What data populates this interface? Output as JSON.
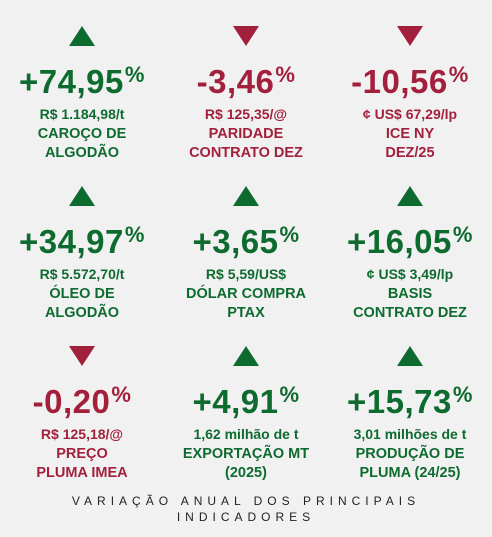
{
  "colors": {
    "positive": "#0e6b2f",
    "negative": "#a3203c",
    "background": "#f1f1f1"
  },
  "indicators": [
    {
      "direction": "up",
      "arrow_icon": "triangle-up-icon",
      "pct": "+74,95",
      "pct_symbol": "%",
      "value": "R$ 1.184,98/t",
      "label_line1": "CAROÇO DE",
      "label_line2": "ALGODÃO"
    },
    {
      "direction": "down",
      "arrow_icon": "triangle-down-icon",
      "pct": "-3,46",
      "pct_symbol": "%",
      "value": "R$ 125,35/@",
      "label_line1": "PARIDADE",
      "label_line2": "CONTRATO DEZ"
    },
    {
      "direction": "down",
      "arrow_icon": "triangle-down-icon",
      "pct": "-10,56",
      "pct_symbol": "%",
      "value": "¢ US$ 67,29/lp",
      "label_line1": "ICE NY",
      "label_line2": "DEZ/25"
    },
    {
      "direction": "up",
      "arrow_icon": "triangle-up-icon",
      "pct": "+34,97",
      "pct_symbol": "%",
      "value": "R$ 5.572,70/t",
      "label_line1": "ÓLEO DE",
      "label_line2": "ALGODÃO"
    },
    {
      "direction": "up",
      "arrow_icon": "triangle-up-icon",
      "pct": "+3,65",
      "pct_symbol": "%",
      "value": "R$ 5,59/US$",
      "label_line1": "DÓLAR COMPRA",
      "label_line2": "PTAX"
    },
    {
      "direction": "up",
      "arrow_icon": "triangle-up-icon",
      "pct": "+16,05",
      "pct_symbol": "%",
      "value": "¢ US$ 3,49/lp",
      "label_line1": "BASIS",
      "label_line2": "CONTRATO DEZ"
    },
    {
      "direction": "down",
      "arrow_icon": "triangle-down-icon",
      "pct": "-0,20",
      "pct_symbol": "%",
      "value": "R$ 125,18/@",
      "label_line1": "PREÇO",
      "label_line2": "PLUMA IMEA"
    },
    {
      "direction": "up",
      "arrow_icon": "triangle-up-icon",
      "pct": "+4,91",
      "pct_symbol": "%",
      "value": "1,62 milhão de t",
      "label_line1": "EXPORTAÇÃO MT",
      "label_line2": "(2025)"
    },
    {
      "direction": "up",
      "arrow_icon": "triangle-up-icon",
      "pct": "+15,73",
      "pct_symbol": "%",
      "value": "3,01 milhões de t",
      "label_line1": "PRODUÇÃO DE",
      "label_line2": "PLUMA (24/25)"
    }
  ],
  "footer": {
    "line1": "VARIAÇÃO ANUAL DOS PRINCIPAIS",
    "line2": "INDICADORES"
  }
}
